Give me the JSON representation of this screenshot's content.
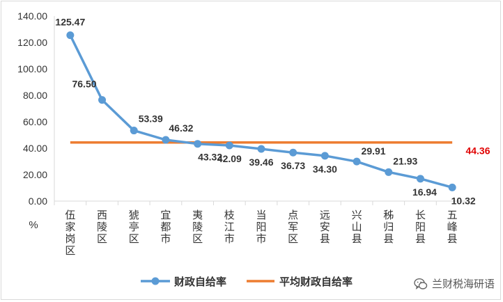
{
  "chart_data": {
    "type": "line",
    "categories": [
      "伍家岗区",
      "西陵区",
      "猇亭区",
      "宜都市",
      "夷陵区",
      "枝江市",
      "当阳市",
      "点军区",
      "远安县",
      "兴山县",
      "秭归县",
      "长阳县",
      "五峰县"
    ],
    "series": [
      {
        "name": "财政自给率",
        "values": [
          125.47,
          76.5,
          53.39,
          46.32,
          43.32,
          42.09,
          39.46,
          36.73,
          34.3,
          29.91,
          21.93,
          16.94,
          10.32
        ],
        "color": "#5b9bd5"
      },
      {
        "name": "平均财政自给率",
        "values": [
          44.36,
          44.36,
          44.36,
          44.36,
          44.36,
          44.36,
          44.36,
          44.36,
          44.36,
          44.36,
          44.36,
          44.36,
          44.36
        ],
        "color": "#ed7d31"
      }
    ],
    "series_labels": [
      "125.47",
      "76.50",
      "53.39",
      "46.32",
      "43.32",
      "42.09",
      "39.46",
      "36.73",
      "34.30",
      "29.91",
      "21.93",
      "16.94",
      "10.32"
    ],
    "average_label": "44.36",
    "average_label_color": "#e00000",
    "yticks": [
      "0.00",
      "20.00",
      "40.00",
      "60.00",
      "80.00",
      "100.00",
      "120.00",
      "140.00"
    ],
    "ylim": [
      0,
      140
    ],
    "ylabel": "%",
    "grid": false,
    "legend_position": "bottom"
  },
  "watermark": {
    "icon": "wechat-logo",
    "text": "兰财税海研语"
  }
}
